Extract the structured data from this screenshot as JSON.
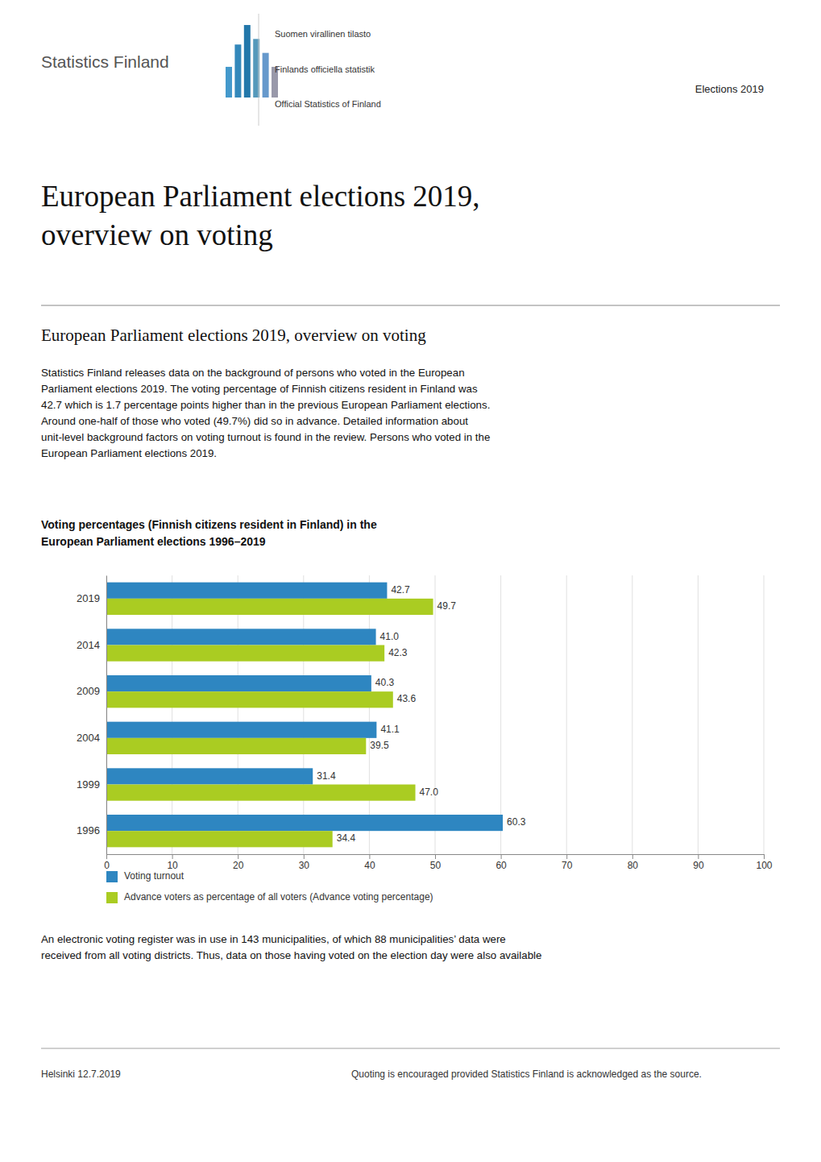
{
  "header": {
    "logo_text": "Statistics Finland",
    "lines": [
      "Suomen virallinen tilasto",
      "Finlands officiella statistik",
      "Official Statistics of Finland"
    ],
    "elections": "Elections 2019"
  },
  "page_title": "European Parliament elections 2019,\noverview on voting",
  "section_title": "European Parliament elections 2019, overview on voting",
  "intro_text": "Statistics Finland releases data on the background of persons who voted in the European\nParliament elections 2019. The voting percentage of Finnish citizens resident in Finland was\n42.7 which is 1.7 percentage points higher than in the previous European Parliament elections.\nAround one-half of those who voted (49.7%) did so in advance. Detailed information about\nunit-level background factors on voting turnout is found in the review. Persons who voted in the\nEuropean Parliament elections 2019.",
  "chart_data": {
    "type": "bar",
    "orientation": "horizontal",
    "title": "Voting percentages (Finnish citizens resident in Finland) in the\nEuropean Parliament elections 1996–2019",
    "categories": [
      "2019",
      "2014",
      "2009",
      "2004",
      "1999",
      "1996"
    ],
    "series": [
      {
        "name": "Voting turnout",
        "color": "#2E86C1",
        "values": [
          42.7,
          41.0,
          40.3,
          41.1,
          31.4,
          60.3
        ],
        "value_labels": [
          "42.7",
          "41.0",
          "40.3",
          "41.1",
          "31.4",
          "60.3"
        ]
      },
      {
        "name": "Advance voters as percentage of all voters (Advance voting percentage)",
        "color": "#AACC22",
        "values": [
          49.7,
          42.3,
          43.6,
          39.5,
          47.0,
          34.4
        ],
        "value_labels": [
          "49.7",
          "42.3",
          "43.6",
          "39.5",
          "47.0",
          "34.4"
        ]
      }
    ],
    "xlim": [
      0,
      100
    ],
    "xticks": [
      0,
      10,
      20,
      30,
      40,
      50,
      60,
      70,
      80,
      90,
      100
    ],
    "grid": true,
    "data_labels": true,
    "legend": "bottom"
  },
  "bottom_text": "An electronic voting register was in use in 143 municipalities, of which 88 municipalities’ data were\nreceived from all voting districts. Thus, data on those having voted on the election day were also available",
  "footer": {
    "left": "Helsinki 12.7.2019",
    "right": "Quoting is encouraged provided Statistics Finland is acknowledged as the source."
  }
}
